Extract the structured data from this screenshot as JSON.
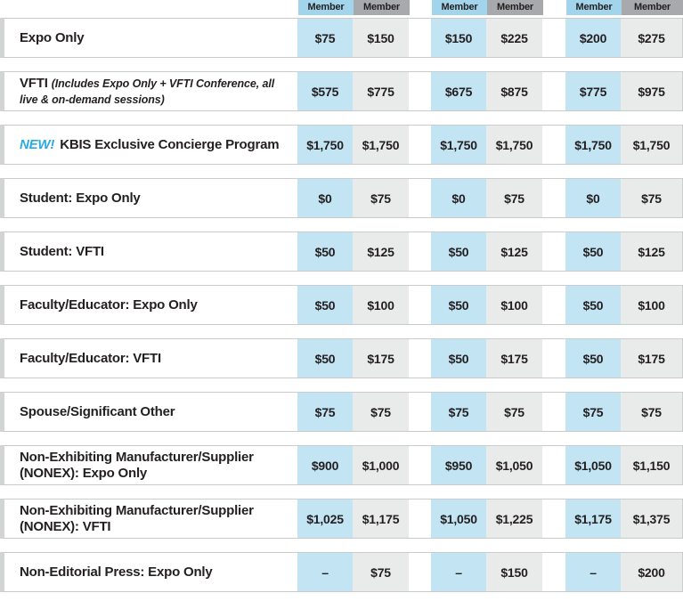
{
  "header": {
    "columns": [
      "Member",
      "Member",
      "Member",
      "Member",
      "Member",
      "Member"
    ]
  },
  "rows": [
    {
      "label": "Expo Only",
      "prices": [
        "$75",
        "$150",
        "$150",
        "$225",
        "$200",
        "$275"
      ]
    },
    {
      "label": "VFTI",
      "note": "(Includes Expo Only + VFTI Conference, all live & on-demand sessions)",
      "prices": [
        "$575",
        "$775",
        "$675",
        "$875",
        "$775",
        "$975"
      ]
    },
    {
      "badge": "NEW!",
      "label": "KBIS Exclusive Concierge Program",
      "prices": [
        "$1,750",
        "$1,750",
        "$1,750",
        "$1,750",
        "$1,750",
        "$1,750"
      ]
    },
    {
      "label": "Student: Expo Only",
      "prices": [
        "$0",
        "$75",
        "$0",
        "$75",
        "$0",
        "$75"
      ]
    },
    {
      "label": "Student: VFTI",
      "prices": [
        "$50",
        "$125",
        "$50",
        "$125",
        "$50",
        "$125"
      ]
    },
    {
      "label": "Faculty/Educator: Expo Only",
      "prices": [
        "$50",
        "$100",
        "$50",
        "$100",
        "$50",
        "$100"
      ]
    },
    {
      "label": "Faculty/Educator: VFTI",
      "prices": [
        "$50",
        "$175",
        "$50",
        "$175",
        "$50",
        "$175"
      ]
    },
    {
      "label": "Spouse/Significant Other",
      "prices": [
        "$75",
        "$75",
        "$75",
        "$75",
        "$75",
        "$75"
      ]
    },
    {
      "label": "Non-Exhibiting Manufacturer/Supplier (NONEX): Expo Only",
      "prices": [
        "$900",
        "$1,000",
        "$950",
        "$1,050",
        "$1,050",
        "$1,150"
      ]
    },
    {
      "label": "Non-Exhibiting Manufacturer/Supplier (NONEX): VFTI",
      "prices": [
        "$1,025",
        "$1,175",
        "$1,050",
        "$1,225",
        "$1,175",
        "$1,375"
      ]
    },
    {
      "label": "Non-Editorial Press: Expo Only",
      "prices": [
        "–",
        "$75",
        "–",
        "$150",
        "–",
        "$200"
      ]
    }
  ],
  "colors": {
    "header_blue": "#a2d5ec",
    "header_gray": "#a7a9ac",
    "cell_blue": "#c2e4f3",
    "cell_gray": "#e9eaea",
    "new_badge_blue": "#29abe2",
    "row_border": "#c9cbcd",
    "row_left_bar": "#d2d4d5",
    "text": "#231f20"
  }
}
